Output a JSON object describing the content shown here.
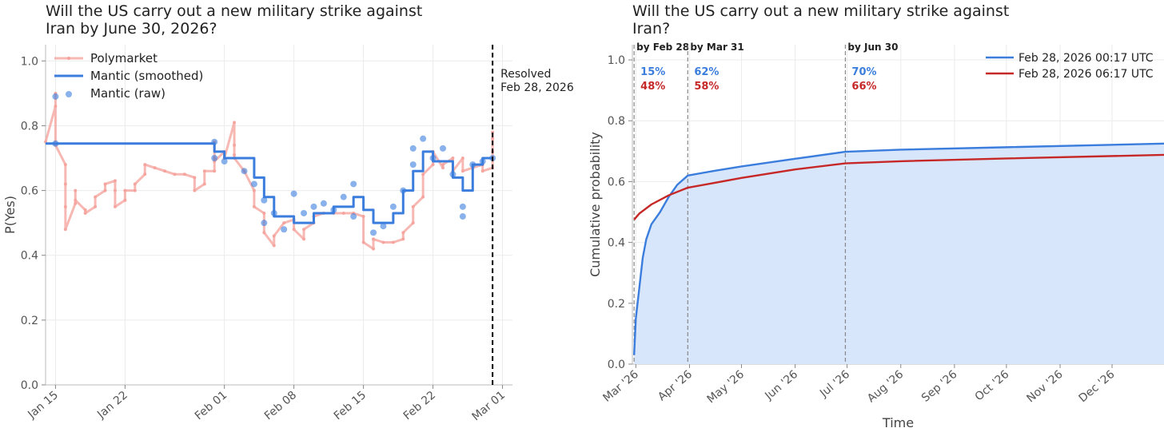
{
  "chart_data": [
    {
      "type": "line",
      "title": "Will the US carry out a new military strike against\nIran by June 30, 2026?",
      "ylabel": "P(Yes)",
      "xlabel": "",
      "x_range": [
        "2026-01-14",
        "2026-03-02"
      ],
      "ylim": [
        0,
        1.05
      ],
      "yticks": [
        "0.0",
        "0.2",
        "0.4",
        "0.6",
        "0.8",
        "1.0"
      ],
      "xticks": [
        {
          "date": "2026-01-15",
          "label": "Jan 15"
        },
        {
          "date": "2026-01-22",
          "label": "Jan 22"
        },
        {
          "date": "2026-02-01",
          "label": "Feb 01"
        },
        {
          "date": "2026-02-08",
          "label": "Feb 08"
        },
        {
          "date": "2026-02-15",
          "label": "Feb 15"
        },
        {
          "date": "2026-02-22",
          "label": "Feb 22"
        },
        {
          "date": "2026-03-01",
          "label": "Mar 01"
        }
      ],
      "grid": true,
      "legend_position": "top-left",
      "annotation": {
        "date": "2026-02-28",
        "text": "Resolved\nFeb 28, 2026"
      },
      "series": [
        {
          "name": "Polymarket",
          "color": "#f4a09a",
          "style": "line-with-markers",
          "points": [
            [
              "2026-01-14",
              0.75
            ],
            [
              "2026-01-15",
              0.86
            ],
            [
              "2026-01-15",
              0.9
            ],
            [
              "2026-01-15",
              0.74
            ],
            [
              "2026-01-16",
              0.68
            ],
            [
              "2026-01-16",
              0.62
            ],
            [
              "2026-01-16",
              0.55
            ],
            [
              "2026-01-16",
              0.48
            ],
            [
              "2026-01-17",
              0.56
            ],
            [
              "2026-01-17",
              0.6
            ],
            [
              "2026-01-17",
              0.57
            ],
            [
              "2026-01-18",
              0.54
            ],
            [
              "2026-01-18",
              0.53
            ],
            [
              "2026-01-19",
              0.55
            ],
            [
              "2026-01-19",
              0.58
            ],
            [
              "2026-01-20",
              0.6
            ],
            [
              "2026-01-20",
              0.62
            ],
            [
              "2026-01-21",
              0.63
            ],
            [
              "2026-01-21",
              0.6
            ],
            [
              "2026-01-21",
              0.55
            ],
            [
              "2026-01-22",
              0.57
            ],
            [
              "2026-01-22",
              0.6
            ],
            [
              "2026-01-23",
              0.6
            ],
            [
              "2026-01-23",
              0.62
            ],
            [
              "2026-01-24",
              0.65
            ],
            [
              "2026-01-24",
              0.68
            ],
            [
              "2026-01-25",
              0.67
            ],
            [
              "2026-01-26",
              0.66
            ],
            [
              "2026-01-27",
              0.65
            ],
            [
              "2026-01-28",
              0.65
            ],
            [
              "2026-01-29",
              0.64
            ],
            [
              "2026-01-29",
              0.6
            ],
            [
              "2026-01-30",
              0.62
            ],
            [
              "2026-01-30",
              0.66
            ],
            [
              "2026-01-31",
              0.66
            ],
            [
              "2026-01-31",
              0.7
            ],
            [
              "2026-01-31",
              0.75
            ],
            [
              "2026-01-31",
              0.69
            ],
            [
              "2026-02-01",
              0.72
            ],
            [
              "2026-02-01",
              0.7
            ],
            [
              "2026-02-02",
              0.81
            ],
            [
              "2026-02-02",
              0.71
            ],
            [
              "2026-02-02",
              0.74
            ],
            [
              "2026-02-02",
              0.7
            ],
            [
              "2026-02-03",
              0.66
            ],
            [
              "2026-02-04",
              0.6
            ],
            [
              "2026-02-04",
              0.55
            ],
            [
              "2026-02-05",
              0.53
            ],
            [
              "2026-02-05",
              0.47
            ],
            [
              "2026-02-06",
              0.43
            ],
            [
              "2026-02-06",
              0.46
            ],
            [
              "2026-02-07",
              0.5
            ],
            [
              "2026-02-08",
              0.51
            ],
            [
              "2026-02-08",
              0.48
            ],
            [
              "2026-02-09",
              0.45
            ],
            [
              "2026-02-09",
              0.48
            ],
            [
              "2026-02-10",
              0.5
            ],
            [
              "2026-02-10",
              0.52
            ],
            [
              "2026-02-11",
              0.53
            ],
            [
              "2026-02-12",
              0.53
            ],
            [
              "2026-02-13",
              0.53
            ],
            [
              "2026-02-14",
              0.53
            ],
            [
              "2026-02-15",
              0.52
            ],
            [
              "2026-02-15",
              0.44
            ],
            [
              "2026-02-16",
              0.42
            ],
            [
              "2026-02-16",
              0.45
            ],
            [
              "2026-02-17",
              0.44
            ],
            [
              "2026-02-18",
              0.44
            ],
            [
              "2026-02-19",
              0.45
            ],
            [
              "2026-02-19",
              0.47
            ],
            [
              "2026-02-20",
              0.5
            ],
            [
              "2026-02-20",
              0.55
            ],
            [
              "2026-02-21",
              0.58
            ],
            [
              "2026-02-21",
              0.65
            ],
            [
              "2026-02-22",
              0.68
            ],
            [
              "2026-02-22",
              0.72
            ],
            [
              "2026-02-23",
              0.67
            ],
            [
              "2026-02-23",
              0.68
            ],
            [
              "2026-02-24",
              0.7
            ],
            [
              "2026-02-24",
              0.66
            ],
            [
              "2026-02-25",
              0.7
            ],
            [
              "2026-02-25",
              0.66
            ],
            [
              "2026-02-26",
              0.67
            ],
            [
              "2026-02-27",
              0.68
            ],
            [
              "2026-02-27",
              0.66
            ],
            [
              "2026-02-28",
              0.67
            ],
            [
              "2026-02-28",
              0.72
            ],
            [
              "2026-02-28",
              0.76
            ],
            [
              "2026-02-28",
              0.78
            ]
          ]
        },
        {
          "name": "Mantic (smoothed)",
          "color": "#3b7ddd",
          "style": "step",
          "points": [
            [
              "2026-01-14",
              0.745
            ],
            [
              "2026-01-31",
              0.745
            ],
            [
              "2026-01-31",
              0.72
            ],
            [
              "2026-02-01",
              0.72
            ],
            [
              "2026-02-01",
              0.7
            ],
            [
              "2026-02-04",
              0.7
            ],
            [
              "2026-02-04",
              0.64
            ],
            [
              "2026-02-05",
              0.64
            ],
            [
              "2026-02-05",
              0.58
            ],
            [
              "2026-02-06",
              0.58
            ],
            [
              "2026-02-06",
              0.52
            ],
            [
              "2026-02-08",
              0.52
            ],
            [
              "2026-02-08",
              0.5
            ],
            [
              "2026-02-10",
              0.5
            ],
            [
              "2026-02-10",
              0.53
            ],
            [
              "2026-02-12",
              0.53
            ],
            [
              "2026-02-12",
              0.55
            ],
            [
              "2026-02-14",
              0.55
            ],
            [
              "2026-02-14",
              0.58
            ],
            [
              "2026-02-15",
              0.58
            ],
            [
              "2026-02-15",
              0.54
            ],
            [
              "2026-02-16",
              0.54
            ],
            [
              "2026-02-16",
              0.5
            ],
            [
              "2026-02-18",
              0.5
            ],
            [
              "2026-02-18",
              0.53
            ],
            [
              "2026-02-19",
              0.53
            ],
            [
              "2026-02-19",
              0.6
            ],
            [
              "2026-02-20",
              0.6
            ],
            [
              "2026-02-20",
              0.66
            ],
            [
              "2026-02-21",
              0.66
            ],
            [
              "2026-02-21",
              0.72
            ],
            [
              "2026-02-22",
              0.72
            ],
            [
              "2026-02-22",
              0.69
            ],
            [
              "2026-02-24",
              0.69
            ],
            [
              "2026-02-24",
              0.64
            ],
            [
              "2026-02-25",
              0.64
            ],
            [
              "2026-02-25",
              0.6
            ],
            [
              "2026-02-26",
              0.6
            ],
            [
              "2026-02-26",
              0.68
            ],
            [
              "2026-02-27",
              0.68
            ],
            [
              "2026-02-27",
              0.7
            ],
            [
              "2026-02-28",
              0.7
            ]
          ]
        },
        {
          "name": "Mantic (raw)",
          "color": "#3b7ddd",
          "style": "scatter",
          "points": [
            [
              "2026-01-15",
              0.745
            ],
            [
              "2026-01-15",
              0.89
            ],
            [
              "2026-01-31",
              0.75
            ],
            [
              "2026-01-31",
              0.7
            ],
            [
              "2026-02-01",
              0.69
            ],
            [
              "2026-02-03",
              0.66
            ],
            [
              "2026-02-04",
              0.62
            ],
            [
              "2026-02-05",
              0.57
            ],
            [
              "2026-02-05",
              0.5
            ],
            [
              "2026-02-06",
              0.53
            ],
            [
              "2026-02-07",
              0.48
            ],
            [
              "2026-02-08",
              0.59
            ],
            [
              "2026-02-09",
              0.53
            ],
            [
              "2026-02-10",
              0.55
            ],
            [
              "2026-02-11",
              0.56
            ],
            [
              "2026-02-12",
              0.54
            ],
            [
              "2026-02-13",
              0.58
            ],
            [
              "2026-02-14",
              0.62
            ],
            [
              "2026-02-14",
              0.52
            ],
            [
              "2026-02-16",
              0.47
            ],
            [
              "2026-02-17",
              0.49
            ],
            [
              "2026-02-18",
              0.55
            ],
            [
              "2026-02-19",
              0.6
            ],
            [
              "2026-02-20",
              0.73
            ],
            [
              "2026-02-20",
              0.68
            ],
            [
              "2026-02-21",
              0.76
            ],
            [
              "2026-02-22",
              0.7
            ],
            [
              "2026-02-23",
              0.73
            ],
            [
              "2026-02-24",
              0.65
            ],
            [
              "2026-02-25",
              0.55
            ],
            [
              "2026-02-25",
              0.52
            ],
            [
              "2026-02-26",
              0.68
            ],
            [
              "2026-02-27",
              0.69
            ],
            [
              "2026-02-28",
              0.7
            ]
          ]
        }
      ]
    },
    {
      "type": "area",
      "title": "Will the US carry out a new military strike against\nIran?",
      "xlabel": "Time",
      "ylabel": "Cumulative probability",
      "x_range": [
        "2026-02-27",
        "2026-12-31"
      ],
      "ylim": [
        0,
        1.05
      ],
      "yticks": [
        "0.0",
        "0.2",
        "0.4",
        "0.6",
        "0.8",
        "1.0"
      ],
      "xticks": [
        {
          "date": "2026-03-01",
          "label": "Mar '26"
        },
        {
          "date": "2026-04-01",
          "label": "Apr '26"
        },
        {
          "date": "2026-05-01",
          "label": "May '26"
        },
        {
          "date": "2026-06-01",
          "label": "Jun '26"
        },
        {
          "date": "2026-07-01",
          "label": "Jul '26"
        },
        {
          "date": "2026-08-01",
          "label": "Aug '26"
        },
        {
          "date": "2026-09-01",
          "label": "Sep '26"
        },
        {
          "date": "2026-10-01",
          "label": "Oct '26"
        },
        {
          "date": "2026-11-01",
          "label": "Nov '26"
        },
        {
          "date": "2026-12-01",
          "label": "Dec '26"
        }
      ],
      "grid": true,
      "legend_position": "top-right",
      "markers": [
        {
          "date": "2026-02-28",
          "label": "by Feb 28",
          "values": [
            "15%",
            "48%"
          ]
        },
        {
          "date": "2026-03-31",
          "label": "by Mar 31",
          "values": [
            "62%",
            "58%"
          ]
        },
        {
          "date": "2026-06-30",
          "label": "by Jun 30",
          "values": [
            "70%",
            "66%"
          ]
        }
      ],
      "series": [
        {
          "name": "Feb 28, 2026 00:17 UTC",
          "color": "#3b7ddd",
          "fill": "#d8e6fb",
          "points": [
            [
              "2026-02-28",
              0.03
            ],
            [
              "2026-03-01",
              0.15
            ],
            [
              "2026-03-03",
              0.25
            ],
            [
              "2026-03-05",
              0.35
            ],
            [
              "2026-03-07",
              0.41
            ],
            [
              "2026-03-10",
              0.46
            ],
            [
              "2026-03-15",
              0.5
            ],
            [
              "2026-03-20",
              0.55
            ],
            [
              "2026-03-25",
              0.59
            ],
            [
              "2026-03-31",
              0.62
            ],
            [
              "2026-04-15",
              0.635
            ],
            [
              "2026-05-01",
              0.65
            ],
            [
              "2026-06-01",
              0.675
            ],
            [
              "2026-06-30",
              0.698
            ],
            [
              "2026-08-01",
              0.705
            ],
            [
              "2026-10-01",
              0.713
            ],
            [
              "2026-12-31",
              0.725
            ]
          ]
        },
        {
          "name": "Feb 28, 2026 06:17 UTC",
          "color": "#c62828",
          "fill": "none",
          "points": [
            [
              "2026-02-28",
              0.475
            ],
            [
              "2026-03-03",
              0.495
            ],
            [
              "2026-03-10",
              0.525
            ],
            [
              "2026-03-20",
              0.555
            ],
            [
              "2026-03-31",
              0.58
            ],
            [
              "2026-05-01",
              0.612
            ],
            [
              "2026-06-01",
              0.64
            ],
            [
              "2026-06-30",
              0.66
            ],
            [
              "2026-08-01",
              0.667
            ],
            [
              "2026-10-01",
              0.676
            ],
            [
              "2026-12-31",
              0.688
            ]
          ]
        }
      ]
    }
  ]
}
